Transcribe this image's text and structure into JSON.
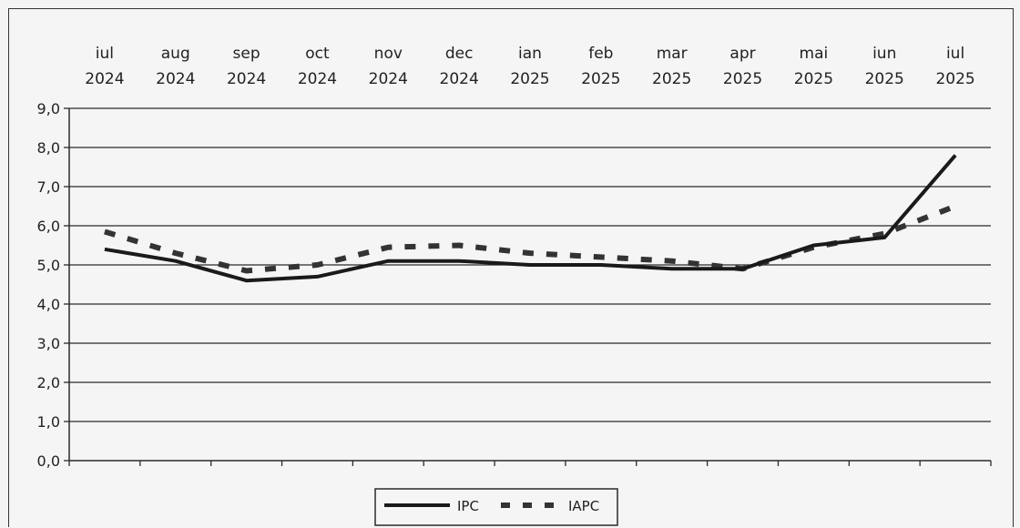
{
  "chart_data": {
    "type": "line",
    "categories": [
      [
        "iul",
        "2024"
      ],
      [
        "aug",
        "2024"
      ],
      [
        "sep",
        "2024"
      ],
      [
        "oct",
        "2024"
      ],
      [
        "nov",
        "2024"
      ],
      [
        "dec",
        "2024"
      ],
      [
        "ian",
        "2025"
      ],
      [
        "feb",
        "2025"
      ],
      [
        "mar",
        "2025"
      ],
      [
        "apr",
        "2025"
      ],
      [
        "mai",
        "2025"
      ],
      [
        "iun",
        "2025"
      ],
      [
        "iul",
        "2025"
      ]
    ],
    "yticks": [
      "0,0",
      "1,0",
      "2,0",
      "3,0",
      "4,0",
      "5,0",
      "6,0",
      "7,0",
      "8,0",
      "9,0"
    ],
    "ylim": [
      0,
      9
    ],
    "grid": true,
    "legend_position": "bottom-center",
    "series": [
      {
        "name": "IPC",
        "style": "solid",
        "color": "#1a1a1a",
        "values": [
          5.4,
          5.1,
          4.6,
          4.7,
          5.1,
          5.1,
          5.0,
          5.0,
          4.9,
          4.9,
          5.5,
          5.7,
          7.8
        ]
      },
      {
        "name": "IAPC",
        "style": "dashed",
        "color": "#333333",
        "values": [
          5.85,
          5.3,
          4.85,
          5.0,
          5.45,
          5.5,
          5.3,
          5.2,
          5.1,
          4.9,
          5.45,
          5.8,
          6.5
        ]
      }
    ]
  }
}
